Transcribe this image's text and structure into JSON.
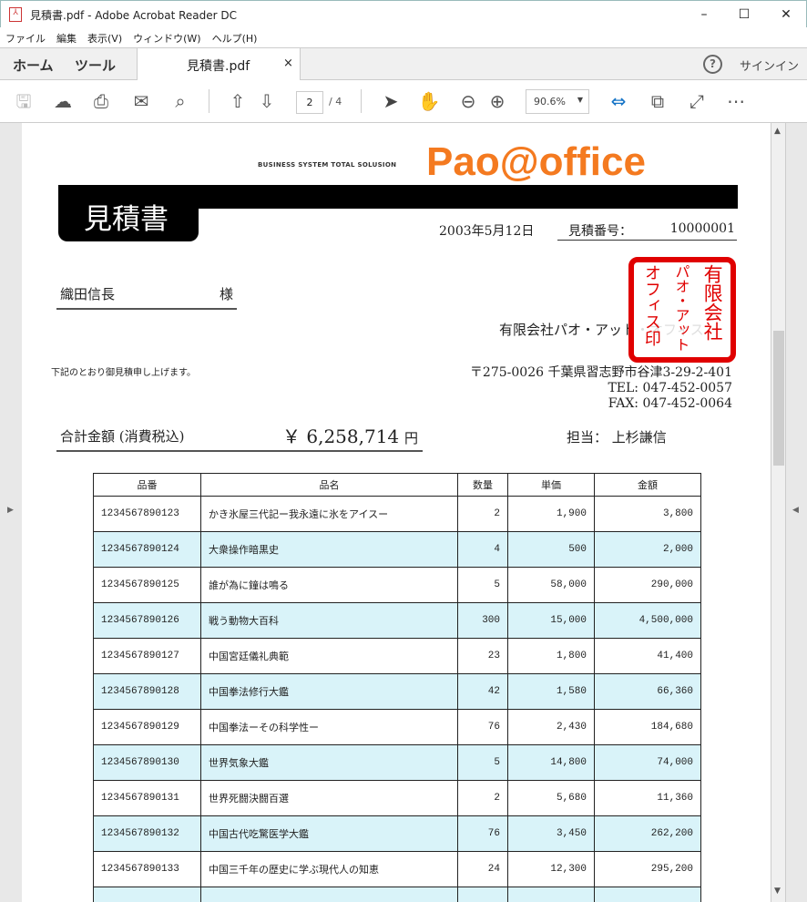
{
  "window": {
    "title": "見積書.pdf - Adobe Acrobat Reader DC",
    "minimize": "–",
    "maximize": "☐",
    "close": "✕"
  },
  "menu": [
    "ファイル",
    "編集",
    "表示(V)",
    "ウィンドウ(W)",
    "ヘルプ(H)"
  ],
  "tabs": {
    "home": "ホーム",
    "tools": "ツール",
    "document": "見積書.pdf",
    "close": "×",
    "help": "?",
    "signin": "サインイン"
  },
  "toolbar": {
    "page_current": "2",
    "page_total": "/ 4",
    "zoom": "90.6%",
    "accent": "#1473c6"
  },
  "doc": {
    "tagline": "BUSINESS SYSTEM TOTAL SOLUSION",
    "logo": "Pao@office",
    "logo_color": "#f47a20",
    "title": "見積書",
    "date": "2003年5月12日",
    "estimate_no_label": "見積番号：",
    "estimate_no": "10000001",
    "customer": "織田信長",
    "honorific": "様",
    "company": "有限会社パオ・アット・オフィス",
    "stamp": [
      "有限会社",
      "パオ・アット",
      "オフィス印"
    ],
    "stamp_color": "#e00000",
    "intro": "下記のとおり御見積申し上げます。",
    "address": "〒275-0026 千葉県習志野市谷津3-29-2-401",
    "tel": "TEL: 047-452-0057",
    "fax": "FAX: 047-452-0064",
    "total_label": "合計金額 (消費税込)",
    "total": "￥ 6,258,714",
    "total_unit": "円",
    "staff_label": "担当：",
    "staff": "上杉謙信",
    "table": {
      "headers": [
        "品番",
        "品名",
        "数量",
        "単価",
        "金額"
      ],
      "rows": [
        [
          "1234567890123",
          "かき氷屋三代記ー我永遠に氷をアイスー",
          "2",
          "1,900",
          "3,800"
        ],
        [
          "1234567890124",
          "大衆操作暗黒史",
          "4",
          "500",
          "2,000"
        ],
        [
          "1234567890125",
          "誰が為に鐘は鳴る",
          "5",
          "58,000",
          "290,000"
        ],
        [
          "1234567890126",
          "戦う動物大百科",
          "300",
          "15,000",
          "4,500,000"
        ],
        [
          "1234567890127",
          "中国宮廷儀礼典範",
          "23",
          "1,800",
          "41,400"
        ],
        [
          "1234567890128",
          "中国拳法修行大鑑",
          "42",
          "1,580",
          "66,360"
        ],
        [
          "1234567890129",
          "中国拳法ーその科学性ー",
          "76",
          "2,430",
          "184,680"
        ],
        [
          "1234567890130",
          "世界気象大鑑",
          "5",
          "14,800",
          "74,000"
        ],
        [
          "1234567890131",
          "世界死闘決闘百選",
          "2",
          "5,680",
          "11,360"
        ],
        [
          "1234567890132",
          "中国古代吃驚医学大鑑",
          "76",
          "3,450",
          "262,200"
        ],
        [
          "1234567890133",
          "中国三千年の歴史に学ぶ現代人の知恵",
          "24",
          "12,300",
          "295,200"
        ],
        [
          "",
          "",
          "",
          "",
          ""
        ]
      ]
    }
  }
}
